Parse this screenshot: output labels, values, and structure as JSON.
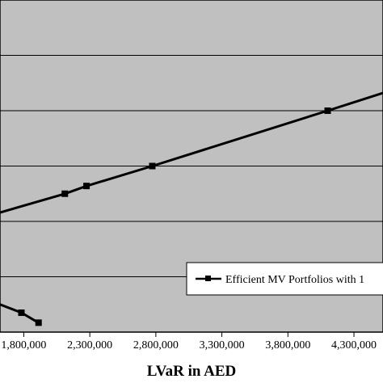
{
  "chart_data": {
    "type": "line",
    "xlabel": "LVaR in AED",
    "x_ticks": [
      "1,800,000",
      "2,300,000",
      "2,800,000",
      "3,300,000",
      "3,800,000",
      "4,300,000"
    ],
    "x_tick_values": [
      1800000,
      2300000,
      2800000,
      3300000,
      3800000,
      4300000
    ],
    "xlim": [
      1620000,
      4520000
    ],
    "ylim": [
      0,
      6
    ],
    "y_gridlines": [
      1,
      2,
      3,
      4,
      5,
      6
    ],
    "grid": true,
    "legend_placement": "bottom-right",
    "plot_background": "#c0c0c0",
    "series": [
      {
        "name": "Efficient MV Portfolios with 1",
        "color": "#000000",
        "x": [
          1620000,
          2111000,
          2275000,
          2773000,
          4101000,
          4520000
        ],
        "y": [
          2.16,
          2.5,
          2.64,
          3.0,
          4.0,
          4.32
        ],
        "markers": [
          false,
          true,
          true,
          true,
          true,
          false
        ]
      },
      {
        "name": "",
        "color": "#000000",
        "x": [
          1620000,
          1782000,
          1912000
        ],
        "y": [
          0.5,
          0.35,
          0.17
        ],
        "markers": [
          false,
          true,
          true
        ]
      }
    ]
  }
}
